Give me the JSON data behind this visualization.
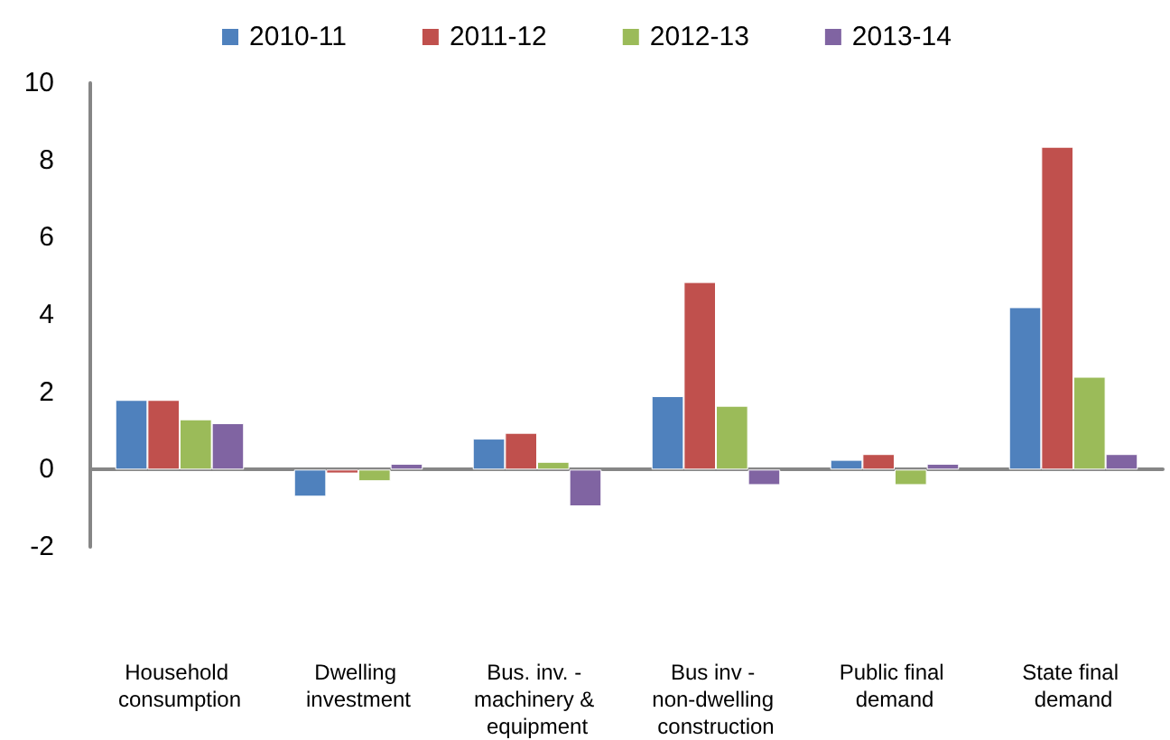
{
  "chart_data": {
    "type": "bar",
    "categories": [
      "Household consumption",
      "Dwelling investment",
      "Bus. inv. - machinery & equipment",
      "Bus inv - non-dwelling construction",
      "Public final demand",
      "State final demand"
    ],
    "series": [
      {
        "name": "2010-11",
        "color": "#4f81bd",
        "values": [
          1.8,
          -0.7,
          0.8,
          1.9,
          0.25,
          4.2
        ]
      },
      {
        "name": "2011-12",
        "color": "#c0504d",
        "values": [
          1.8,
          -0.1,
          0.95,
          4.85,
          0.4,
          8.35
        ]
      },
      {
        "name": "2012-13",
        "color": "#9bbb59",
        "values": [
          1.3,
          -0.3,
          0.2,
          1.65,
          -0.4,
          2.4
        ]
      },
      {
        "name": "2013-14",
        "color": "#8064a2",
        "values": [
          1.2,
          0.15,
          -0.95,
          -0.4,
          0.15,
          0.4
        ]
      }
    ],
    "ylim": [
      -2,
      10
    ],
    "yticks": [
      -2,
      0,
      2,
      4,
      6,
      8,
      10
    ],
    "legend": "top"
  }
}
